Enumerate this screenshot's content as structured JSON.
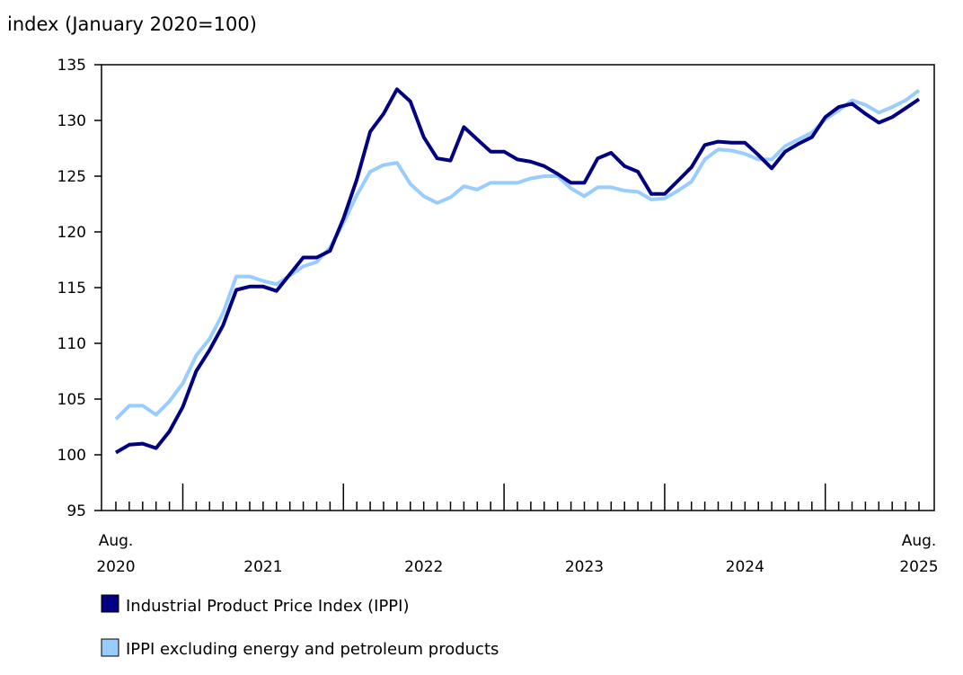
{
  "chart_data": {
    "type": "line",
    "title": "",
    "ylabel": "index (January 2020=100)",
    "xlabel": "",
    "ylim": [
      95,
      135
    ],
    "yticks": [
      95,
      100,
      105,
      110,
      115,
      120,
      125,
      130,
      135
    ],
    "x_start": "2020-08",
    "x_end": "2025-08",
    "x_tick_labels": [
      {
        "month": "2020-08",
        "lines": [
          "Aug.",
          "2020"
        ]
      },
      {
        "month": "2021-07",
        "lines": [
          "",
          "2021"
        ]
      },
      {
        "month": "2022-07",
        "lines": [
          "",
          "2022"
        ]
      },
      {
        "month": "2023-07",
        "lines": [
          "",
          "2023"
        ]
      },
      {
        "month": "2024-07",
        "lines": [
          "",
          "2024"
        ]
      },
      {
        "month": "2025-08",
        "lines": [
          "Aug.",
          "2025"
        ]
      }
    ],
    "grid": false,
    "legend_placement": "bottom",
    "series": [
      {
        "name": "Industrial Product Price Index (IPPI)",
        "color": "#000080",
        "values": [
          100.2,
          100.9,
          101.0,
          100.6,
          102.1,
          104.3,
          107.5,
          109.4,
          111.6,
          114.8,
          115.1,
          115.1,
          114.7,
          116.2,
          117.7,
          117.7,
          118.3,
          121.2,
          124.7,
          129.0,
          130.6,
          132.8,
          131.7,
          128.5,
          126.6,
          126.4,
          129.4,
          128.3,
          127.2,
          127.2,
          126.5,
          126.3,
          125.9,
          125.2,
          124.4,
          124.4,
          126.6,
          127.1,
          125.9,
          125.4,
          123.4,
          123.4,
          124.6,
          125.8,
          127.8,
          128.1,
          128.0,
          128.0,
          126.9,
          125.7,
          127.2,
          127.9,
          128.5,
          130.3,
          131.2,
          131.5,
          130.6,
          129.8,
          130.3,
          131.1,
          131.9
        ]
      },
      {
        "name": "IPPI excluding energy and petroleum products",
        "color": "#99ccff",
        "values": [
          103.2,
          104.4,
          104.4,
          103.6,
          104.8,
          106.4,
          108.9,
          110.4,
          112.7,
          116.0,
          116.0,
          115.6,
          115.3,
          116.1,
          116.9,
          117.3,
          118.6,
          120.8,
          123.3,
          125.4,
          126.0,
          126.2,
          124.3,
          123.2,
          122.6,
          123.1,
          124.1,
          123.8,
          124.4,
          124.4,
          124.4,
          124.8,
          125.0,
          125.0,
          123.9,
          123.2,
          124.0,
          124.0,
          123.7,
          123.6,
          122.9,
          123.0,
          123.7,
          124.5,
          126.5,
          127.4,
          127.3,
          127.0,
          126.5,
          126.5,
          127.7,
          128.3,
          128.9,
          130.1,
          130.9,
          131.8,
          131.4,
          130.7,
          131.2,
          131.8,
          132.7
        ]
      }
    ]
  }
}
